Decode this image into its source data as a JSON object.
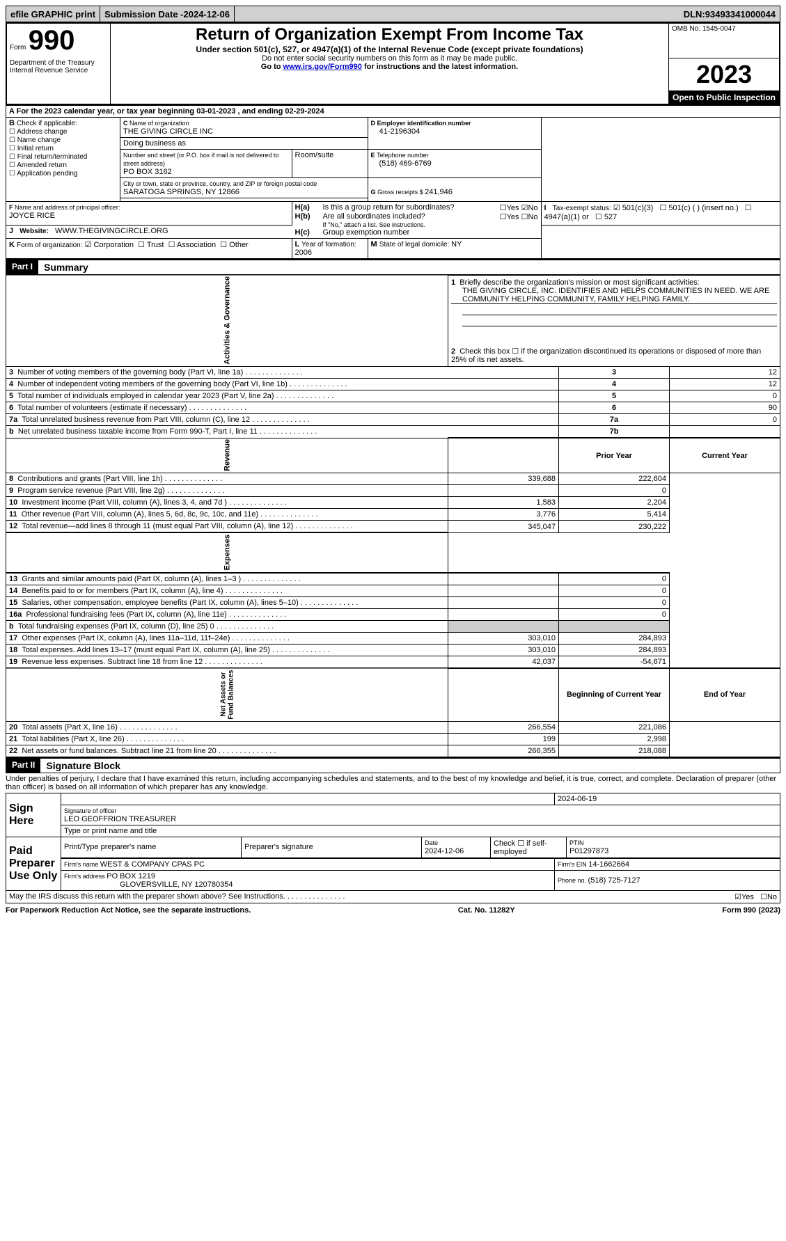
{
  "topbar": {
    "efile": "efile GRAPHIC print",
    "submission_label": "Submission Date - ",
    "submission_date": "2024-12-06",
    "dln_label": "DLN: ",
    "dln": "93493341000044"
  },
  "header": {
    "form_prefix": "Form",
    "form_number": "990",
    "dept": "Department of the Treasury\nInternal Revenue Service",
    "title": "Return of Organization Exempt From Income Tax",
    "subtitle": "Under section 501(c), 527, or 4947(a)(1) of the Internal Revenue Code (except private foundations)",
    "note1": "Do not enter social security numbers on this form as it may be made public.",
    "note2_pre": "Go to ",
    "note2_link": "www.irs.gov/Form990",
    "note2_post": " for instructions and the latest information.",
    "omb": "OMB No. 1545-0047",
    "year": "2023",
    "open": "Open to Public Inspection"
  },
  "sectionA": {
    "line": "For the 2023 calendar year, or tax year beginning ",
    "begin": "03-01-2023",
    "mid": "  , and ending ",
    "end": "02-29-2024"
  },
  "sectionB": {
    "label": "Check if applicable:",
    "addr": "Address change",
    "name": "Name change",
    "initial": "Initial return",
    "final": "Final return/terminated",
    "amended": "Amended return",
    "app": "Application pending"
  },
  "sectionC": {
    "name_label": "Name of organization",
    "name": "THE GIVING CIRCLE INC",
    "dba_label": "Doing business as",
    "street_label": "Number and street (or P.O. box if mail is not delivered to street address)",
    "street": "PO BOX 3162",
    "room_label": "Room/suite",
    "city_label": "City or town, state or province, country, and ZIP or foreign postal code",
    "city": "SARATOGA SPRINGS, NY  12866"
  },
  "sectionD": {
    "label": "Employer identification number",
    "value": "41-2196304"
  },
  "sectionE": {
    "label": "Telephone number",
    "value": "(518) 469-6769"
  },
  "sectionG": {
    "label": "Gross receipts $ ",
    "value": "241,946"
  },
  "sectionF": {
    "label": "Name and address of principal officer:",
    "name": "JOYCE RICE"
  },
  "sectionH": {
    "a": "Is this a group return for subordinates?",
    "b": "Are all subordinates included?",
    "b_note": "If \"No,\" attach a list. See instructions.",
    "c": "Group exemption number",
    "yes": "Yes",
    "no": "No"
  },
  "sectionI": {
    "label": "Tax-exempt status:",
    "c3": "501(c)(3)",
    "c": "501(c) (  ) (insert no.)",
    "a1": "4947(a)(1) or",
    "s527": "527"
  },
  "sectionJ": {
    "label": "Website:",
    "value": "WWW.THEGIVINGCIRCLE.ORG"
  },
  "sectionK": {
    "label": "Form of organization:",
    "corp": "Corporation",
    "trust": "Trust",
    "assoc": "Association",
    "other": "Other"
  },
  "sectionL": {
    "label": "Year of formation: ",
    "value": "2006"
  },
  "sectionM": {
    "label": "State of legal domicile: ",
    "value": "NY"
  },
  "part1": {
    "hdr": "Part I",
    "title": "Summary",
    "l1_label": "Briefly describe the organization's mission or most significant activities:",
    "l1_text": "THE GIVING CIRCLE, INC. IDENTIFIES AND HELPS COMMUNITIES IN NEED. WE ARE COMMUNITY HELPING COMMUNITY, FAMILY HELPING FAMILY.",
    "l2": "Check this box ☐ if the organization discontinued its operations or disposed of more than 25% of its net assets.",
    "rows_ag": [
      {
        "n": "3",
        "t": "Number of voting members of the governing body (Part VI, line 1a)",
        "box": "3",
        "v": "12"
      },
      {
        "n": "4",
        "t": "Number of independent voting members of the governing body (Part VI, line 1b)",
        "box": "4",
        "v": "12"
      },
      {
        "n": "5",
        "t": "Total number of individuals employed in calendar year 2023 (Part V, line 2a)",
        "box": "5",
        "v": "0"
      },
      {
        "n": "6",
        "t": "Total number of volunteers (estimate if necessary)",
        "box": "6",
        "v": "90"
      },
      {
        "n": "7a",
        "t": "Total unrelated business revenue from Part VIII, column (C), line 12",
        "box": "7a",
        "v": "0"
      },
      {
        "n": "b",
        "t": "Net unrelated business taxable income from Form 990-T, Part I, line 11",
        "box": "7b",
        "v": ""
      }
    ],
    "col_prior": "Prior Year",
    "col_current": "Current Year",
    "rows_rev": [
      {
        "n": "8",
        "t": "Contributions and grants (Part VIII, line 1h)",
        "p": "339,688",
        "c": "222,604"
      },
      {
        "n": "9",
        "t": "Program service revenue (Part VIII, line 2g)",
        "p": "",
        "c": "0"
      },
      {
        "n": "10",
        "t": "Investment income (Part VIII, column (A), lines 3, 4, and 7d )",
        "p": "1,583",
        "c": "2,204"
      },
      {
        "n": "11",
        "t": "Other revenue (Part VIII, column (A), lines 5, 6d, 8c, 9c, 10c, and 11e)",
        "p": "3,776",
        "c": "5,414"
      },
      {
        "n": "12",
        "t": "Total revenue—add lines 8 through 11 (must equal Part VIII, column (A), line 12)",
        "p": "345,047",
        "c": "230,222"
      }
    ],
    "rows_exp": [
      {
        "n": "13",
        "t": "Grants and similar amounts paid (Part IX, column (A), lines 1–3 )",
        "p": "",
        "c": "0"
      },
      {
        "n": "14",
        "t": "Benefits paid to or for members (Part IX, column (A), line 4)",
        "p": "",
        "c": "0"
      },
      {
        "n": "15",
        "t": "Salaries, other compensation, employee benefits (Part IX, column (A), lines 5–10)",
        "p": "",
        "c": "0"
      },
      {
        "n": "16a",
        "t": "Professional fundraising fees (Part IX, column (A), line 11e)",
        "p": "",
        "c": "0"
      },
      {
        "n": "b",
        "t": "Total fundraising expenses (Part IX, column (D), line 25) 0",
        "p": "SHADE",
        "c": "SHADE"
      },
      {
        "n": "17",
        "t": "Other expenses (Part IX, column (A), lines 11a–11d, 11f–24e)",
        "p": "303,010",
        "c": "284,893"
      },
      {
        "n": "18",
        "t": "Total expenses. Add lines 13–17 (must equal Part IX, column (A), line 25)",
        "p": "303,010",
        "c": "284,893"
      },
      {
        "n": "19",
        "t": "Revenue less expenses. Subtract line 18 from line 12",
        "p": "42,037",
        "c": "-54,671"
      }
    ],
    "col_boy": "Beginning of Current Year",
    "col_eoy": "End of Year",
    "rows_na": [
      {
        "n": "20",
        "t": "Total assets (Part X, line 16)",
        "p": "266,554",
        "c": "221,086"
      },
      {
        "n": "21",
        "t": "Total liabilities (Part X, line 26)",
        "p": "199",
        "c": "2,998"
      },
      {
        "n": "22",
        "t": "Net assets or fund balances. Subtract line 21 from line 20",
        "p": "266,355",
        "c": "218,088"
      }
    ],
    "side_ag": "Activities & Governance",
    "side_rev": "Revenue",
    "side_exp": "Expenses",
    "side_na": "Net Assets or\nFund Balances"
  },
  "part2": {
    "hdr": "Part II",
    "title": "Signature Block",
    "decl": "Under penalties of perjury, I declare that I have examined this return, including accompanying schedules and statements, and to the best of my knowledge and belief, it is true, correct, and complete. Declaration of preparer (other than officer) is based on all information of which preparer has any knowledge.",
    "sign_here": "Sign Here",
    "sig_off": "Signature of officer",
    "sig_date": "2024-06-19",
    "officer": "LEO GEOFFRION  TREASURER",
    "type_name": "Type or print name and title",
    "paid": "Paid Preparer Use Only",
    "prep_name_label": "Print/Type preparer's name",
    "prep_sig_label": "Preparer's signature",
    "date_label": "Date",
    "date_val": "2024-12-06",
    "check_label": "Check ☐ if self-employed",
    "ptin_label": "PTIN",
    "ptin": "P01297873",
    "firm_name_label": "Firm's name   ",
    "firm_name": "WEST & COMPANY CPAS PC",
    "firm_ein_label": "Firm's EIN  ",
    "firm_ein": "14-1662664",
    "firm_addr_label": "Firm's address ",
    "firm_addr1": "PO BOX 1219",
    "firm_addr2": "GLOVERSVILLE, NY  120780354",
    "phone_label": "Phone no. ",
    "phone": "(518) 725-7127",
    "discuss": "May the IRS discuss this return with the preparer shown above? See Instructions.",
    "yes": "Yes",
    "no": "No"
  },
  "footer": {
    "left": "For Paperwork Reduction Act Notice, see the separate instructions.",
    "mid": "Cat. No. 11282Y",
    "right": "Form 990 (2023)"
  },
  "colors": {
    "topbar_bg": "#d0d0d0",
    "shade": "#cccccc",
    "black": "#000000",
    "link": "#0000cc"
  }
}
